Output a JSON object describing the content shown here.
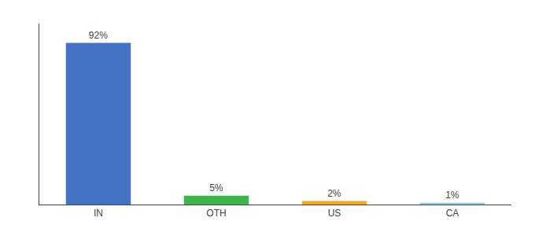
{
  "chart_data": {
    "type": "bar",
    "categories": [
      "IN",
      "OTH",
      "US",
      "CA"
    ],
    "values": [
      92,
      5,
      2,
      1
    ],
    "value_labels": [
      "92%",
      "5%",
      "2%",
      "1%"
    ],
    "colors": [
      "#4472C4",
      "#3CB54A",
      "#F5A623",
      "#87CEEB"
    ],
    "ylim": [
      0,
      103
    ],
    "data_labels": true,
    "tick_labels": "x",
    "grid": false
  }
}
